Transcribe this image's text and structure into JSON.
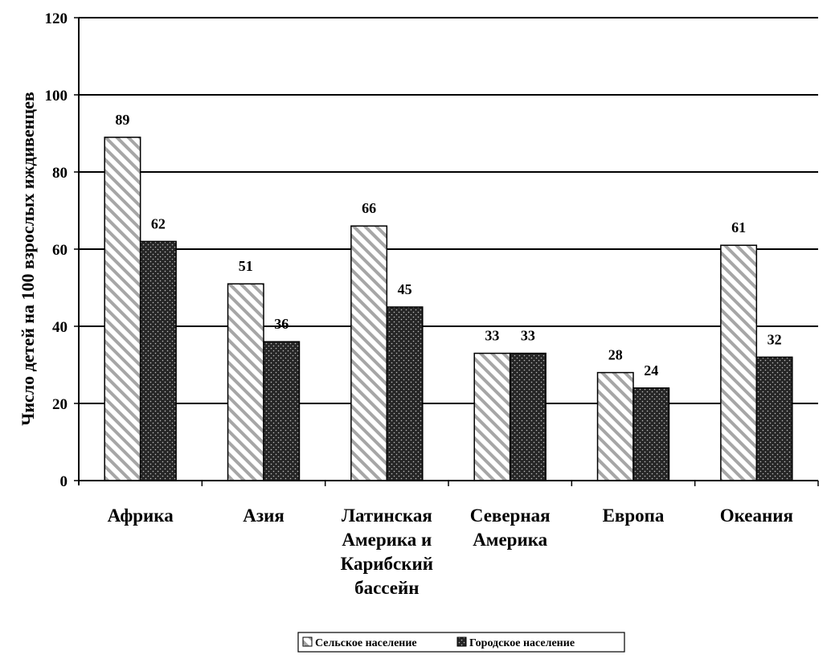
{
  "chart_data": {
    "type": "bar",
    "title": "",
    "xlabel": "",
    "ylabel": "Число детей на 100 взрослых иждивенцев",
    "ylim": [
      0,
      120
    ],
    "yticks": [
      0,
      20,
      40,
      60,
      80,
      100,
      120
    ],
    "grid": true,
    "legend_position": "bottom-center",
    "categories": [
      [
        "Африка"
      ],
      [
        "Азия"
      ],
      [
        "Латинская",
        "Америка и",
        "Карибский",
        "бассейн"
      ],
      [
        "Северная",
        "Америка"
      ],
      [
        "Европа"
      ],
      [
        "Океания"
      ]
    ],
    "series": [
      {
        "name": "Сельское население",
        "pattern": "diagonal-hatch",
        "fill": "#ffffff",
        "stroke": "#9a9a9a",
        "values": [
          89,
          51,
          66,
          33,
          28,
          61
        ]
      },
      {
        "name": "Городское население",
        "pattern": "dotted-dark",
        "fill": "#262626",
        "stroke": "#bfbfbf",
        "values": [
          62,
          36,
          45,
          33,
          24,
          32
        ]
      }
    ]
  }
}
